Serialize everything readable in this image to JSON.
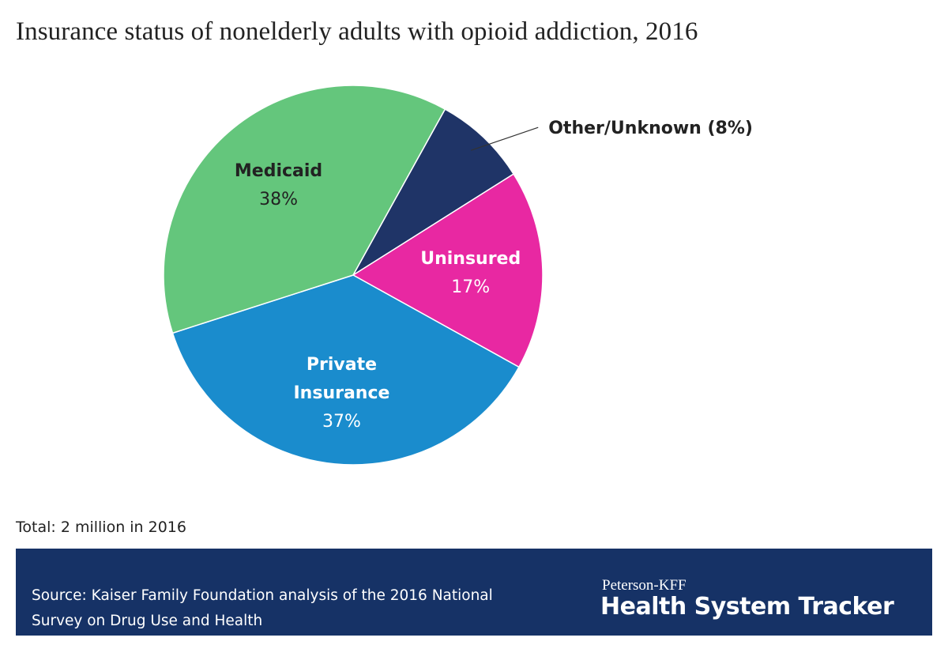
{
  "chart_data": {
    "type": "pie",
    "title": "Insurance status of nonelderly adults with opioid addiction, 2016",
    "slices": [
      {
        "name": "Other/Unknown",
        "value": 8,
        "value_label": "(8%)",
        "color": "#1f3467",
        "label_color": "#222222",
        "label_lines": [
          "Other/Unknown"
        ]
      },
      {
        "name": "Uninsured",
        "value": 17,
        "value_label": "17%",
        "color": "#e828a2",
        "label_color": "#ffffff",
        "label_lines": [
          "Uninsured"
        ]
      },
      {
        "name": "Private Insurance",
        "value": 37,
        "value_label": "37%",
        "color": "#1a8ccd",
        "label_color": "#ffffff",
        "label_lines": [
          "Private",
          "Insurance"
        ]
      },
      {
        "name": "Medicaid",
        "value": 38,
        "value_label": "38%",
        "color": "#64c67c",
        "label_color": "#222222",
        "label_lines": [
          "Medicaid"
        ]
      }
    ],
    "start_direction": "clockwise from upper right",
    "note": "Total: 2 million in 2016"
  },
  "footer": {
    "source": "Source: Kaiser Family Foundation analysis of the 2016 National Survey on Drug Use and Health",
    "brand_top": "Peterson-KFF",
    "brand_main": "Health System Tracker",
    "background_color": "#163266"
  }
}
